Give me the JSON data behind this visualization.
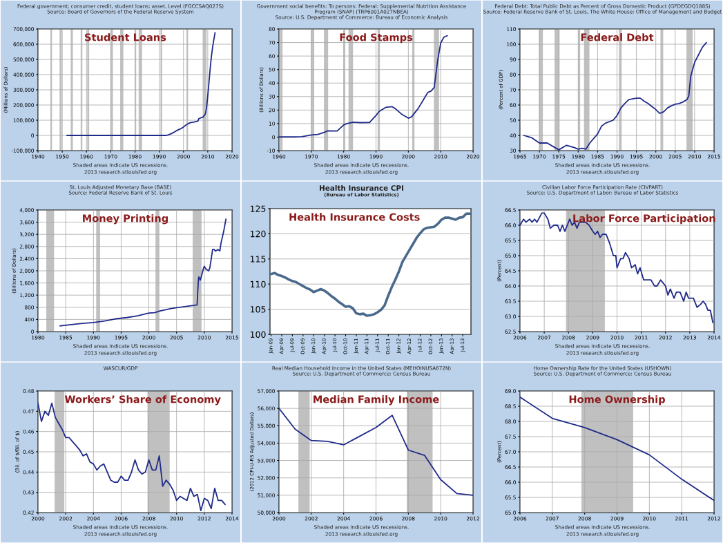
{
  "chart_data": [
    {
      "type": "line",
      "title": "Federal government; consumer credit, student loans; asset, Level (FGCCSAQ027S)",
      "subtitle": "Source: Board of Governors of the Federal Reserve System",
      "ylabel": "(Millions of Dollars)",
      "annotations": [
        "Student Loans",
        "Shaded areas indicate US recessions.",
        "2013 research.stlouisfed.org"
      ],
      "series": [
        {
          "color": "#1f2a8a",
          "x": [
            1952,
            1960,
            1970,
            1980,
            1993,
            1994,
            1995,
            1996,
            1997,
            1998,
            1999,
            2000,
            2001,
            2002,
            2003,
            2004,
            2005,
            2006,
            2006.3,
            2007,
            2008,
            2009,
            2009.5,
            2010,
            2010.5,
            2011,
            2011.5,
            2012,
            2012.5,
            2013
          ],
          "values": [
            0,
            0,
            0,
            0,
            0,
            5000,
            12000,
            20000,
            30000,
            38000,
            45000,
            55000,
            68000,
            78000,
            85000,
            87000,
            90000,
            95000,
            110000,
            115000,
            120000,
            140000,
            180000,
            260000,
            350000,
            440000,
            520000,
            580000,
            630000,
            675000
          ]
        }
      ],
      "bands": [
        {
          "axis": "x",
          "from": 1945.1,
          "to": 1945.8,
          "color": "#c0c0c0"
        },
        {
          "axis": "x",
          "from": 1948.9,
          "to": 1949.8,
          "color": "#c0c0c0"
        },
        {
          "axis": "x",
          "from": 1953.5,
          "to": 1954.4,
          "color": "#c0c0c0"
        },
        {
          "axis": "x",
          "from": 1957.6,
          "to": 1958.3,
          "color": "#c0c0c0"
        },
        {
          "axis": "x",
          "from": 1960.3,
          "to": 1961.1,
          "color": "#c0c0c0"
        },
        {
          "axis": "x",
          "from": 1969.9,
          "to": 1970.9,
          "color": "#c0c0c0"
        },
        {
          "axis": "x",
          "from": 1973.9,
          "to": 1975.2,
          "color": "#c0c0c0"
        },
        {
          "axis": "x",
          "from": 1980.0,
          "to": 1980.5,
          "color": "#c0c0c0"
        },
        {
          "axis": "x",
          "from": 1981.5,
          "to": 1982.9,
          "color": "#c0c0c0"
        },
        {
          "axis": "x",
          "from": 1990.5,
          "to": 1991.2,
          "color": "#c0c0c0"
        },
        {
          "axis": "x",
          "from": 2001.2,
          "to": 2001.9,
          "color": "#c0c0c0"
        },
        {
          "axis": "x",
          "from": 2007.9,
          "to": 2009.5,
          "color": "#c0c0c0"
        }
      ],
      "xlim": [
        1940,
        2020
      ],
      "xticks": [
        1940,
        1950,
        1960,
        1970,
        1980,
        1990,
        2000,
        2010,
        2020
      ],
      "ylim": [
        -100000,
        700000
      ],
      "yticks": [
        {
          "value": -100000,
          "label": "-100,000"
        },
        {
          "value": 0,
          "label": "0"
        },
        {
          "value": 100000,
          "label": "100,000"
        },
        {
          "value": 200000,
          "label": "200,000"
        },
        {
          "value": 300000,
          "label": "300,000"
        },
        {
          "value": 400000,
          "label": "400,000"
        },
        {
          "value": 500000,
          "label": "500,000"
        },
        {
          "value": 600000,
          "label": "600,000"
        },
        {
          "value": 700000,
          "label": "700,000"
        }
      ],
      "grid": true
    },
    {
      "type": "line",
      "title": "Government social benefits: To persons: Federal: Supplemental Nutrition Assistance\nProgram (SNAP) (TRP6001A027NBEA)",
      "subtitle": "Source: U.S. Department of Commerce: Bureau of Economic Analysis",
      "ylabel": "(Billions of Dollars)",
      "annotations": [
        "Food Stamps",
        "Shaded areas indicate US recessions.",
        "2013 research.stlouisfed.org"
      ],
      "series": [
        {
          "color": "#1f2a8a",
          "x": [
            1960,
            1965,
            1967,
            1970,
            1972,
            1974,
            1975,
            1978,
            1980,
            1981,
            1982,
            1983,
            1985,
            1988,
            1990,
            1991,
            1993,
            1995,
            1996,
            1998,
            2000,
            2001,
            2003,
            2005,
            2006,
            2007,
            2008,
            2009,
            2010,
            2011,
            2012
          ],
          "values": [
            0.1,
            0.1,
            0.3,
            1.6,
            2,
            3.5,
            4.6,
            4.5,
            9,
            10,
            10.5,
            11,
            10.7,
            10.8,
            16,
            19,
            22,
            22.5,
            21,
            16.8,
            14,
            15,
            21,
            29,
            33,
            34,
            36.7,
            55.7,
            69.6,
            74,
            75
          ]
        }
      ],
      "bands": [
        {
          "axis": "x",
          "from": 1960.3,
          "to": 1961.1,
          "color": "#c0c0c0"
        },
        {
          "axis": "x",
          "from": 1969.9,
          "to": 1970.9,
          "color": "#c0c0c0"
        },
        {
          "axis": "x",
          "from": 1973.9,
          "to": 1975.2,
          "color": "#c0c0c0"
        },
        {
          "axis": "x",
          "from": 1980.0,
          "to": 1980.5,
          "color": "#c0c0c0"
        },
        {
          "axis": "x",
          "from": 1981.5,
          "to": 1982.9,
          "color": "#c0c0c0"
        },
        {
          "axis": "x",
          "from": 1990.5,
          "to": 1991.2,
          "color": "#c0c0c0"
        },
        {
          "axis": "x",
          "from": 2001.2,
          "to": 2001.9,
          "color": "#c0c0c0"
        },
        {
          "axis": "x",
          "from": 2007.9,
          "to": 2009.5,
          "color": "#c0c0c0"
        }
      ],
      "xlim": [
        1960,
        2020
      ],
      "xticks": [
        1960,
        1970,
        1980,
        1990,
        2000,
        2010,
        2020
      ],
      "ylim": [
        -10,
        80
      ],
      "yticks": [
        -10,
        0,
        10,
        20,
        30,
        40,
        50,
        60,
        70,
        80
      ],
      "grid": true
    },
    {
      "type": "line",
      "title": "Federal Debt: Total Public Debt as Percent of Gross Domestic Product (GFDEGDQ188S)",
      "subtitle": "Source: Federal Reserve Bank of St. Louis, The White House: Office of Management and Budget",
      "ylabel": "(Percent of GDP)",
      "annotations": [
        "Federal Debt",
        "Shaded areas indicate US recessions.",
        "2013 research.stlouisfed.org"
      ],
      "series": [
        {
          "color": "#1f2a8a",
          "x": [
            1966,
            1968,
            1970,
            1972,
            1974,
            1975,
            1977,
            1979,
            1980,
            1981,
            1982,
            1983,
            1985,
            1986,
            1987,
            1989,
            1990,
            1991,
            1992,
            1993,
            1994,
            1995,
            1996,
            1997,
            1998,
            1999,
            2000,
            2001,
            2002,
            2003,
            2004,
            2005,
            2006,
            2007,
            2008,
            2008.5,
            2009,
            2010,
            2011,
            2012,
            2013
          ],
          "values": [
            40,
            38.5,
            35,
            35,
            32,
            30.5,
            33.5,
            32,
            31,
            31.5,
            31,
            35,
            41,
            46,
            48,
            50,
            53,
            58,
            61,
            63.5,
            64,
            64.5,
            64.5,
            62.5,
            61,
            59,
            57,
            54.5,
            55.5,
            58,
            59.5,
            60.5,
            61,
            62,
            63.5,
            66,
            79,
            88,
            93,
            98,
            101
          ]
        }
      ],
      "bands": [
        {
          "axis": "x",
          "from": 1969.9,
          "to": 1970.9,
          "color": "#c0c0c0"
        },
        {
          "axis": "x",
          "from": 1973.9,
          "to": 1975.2,
          "color": "#c0c0c0"
        },
        {
          "axis": "x",
          "from": 1980.0,
          "to": 1980.5,
          "color": "#c0c0c0"
        },
        {
          "axis": "x",
          "from": 1981.5,
          "to": 1982.9,
          "color": "#c0c0c0"
        },
        {
          "axis": "x",
          "from": 1990.5,
          "to": 1991.2,
          "color": "#c0c0c0"
        },
        {
          "axis": "x",
          "from": 2001.2,
          "to": 2001.9,
          "color": "#c0c0c0"
        },
        {
          "axis": "x",
          "from": 2007.9,
          "to": 2009.5,
          "color": "#c0c0c0"
        }
      ],
      "xlim": [
        1965,
        2015
      ],
      "xticks": [
        1965,
        1970,
        1975,
        1980,
        1985,
        1990,
        1995,
        2000,
        2005,
        2010,
        2015
      ],
      "ylim": [
        30,
        110
      ],
      "yticks": [
        30,
        40,
        50,
        60,
        70,
        80,
        90,
        100,
        110
      ],
      "grid": true
    },
    {
      "type": "line",
      "title": "St. Louis Adjusted Monetary Base (BASE)",
      "subtitle": "Source: Federal Reserve Bank of St. Louis",
      "ylabel": "(Billions of Dollars)",
      "annotations": [
        "Money Printing",
        "Shaded areas indicate US recessions.",
        "2013 research.stlouisfed.org"
      ],
      "series": [
        {
          "color": "#1f2a8a",
          "x": [
            1984,
            1986,
            1988,
            1990,
            1992,
            1994,
            1996,
            1998,
            2000,
            2001,
            2002,
            2004,
            2006,
            2008,
            2008.7,
            2008.9,
            2009,
            2009.3,
            2009.8,
            2010,
            2010.3,
            2010.8,
            2011,
            2011.5,
            2011.8,
            2012,
            2012.5,
            2012.8,
            2013,
            2013.5,
            2013.9
          ],
          "values": [
            190,
            230,
            270,
            300,
            350,
            420,
            460,
            520,
            610,
            620,
            680,
            760,
            810,
            860,
            880,
            1600,
            1800,
            1700,
            2050,
            2150,
            2050,
            2000,
            2100,
            2700,
            2700,
            2650,
            2700,
            2650,
            2900,
            3300,
            3700
          ]
        }
      ],
      "bands": [
        {
          "axis": "x",
          "from": 1981.5,
          "to": 1982.9,
          "color": "#c0c0c0"
        },
        {
          "axis": "x",
          "from": 1990.5,
          "to": 1991.2,
          "color": "#c0c0c0"
        },
        {
          "axis": "x",
          "from": 2001.2,
          "to": 2001.9,
          "color": "#c0c0c0"
        },
        {
          "axis": "x",
          "from": 2007.9,
          "to": 2009.5,
          "color": "#c0c0c0"
        }
      ],
      "xlim": [
        1980,
        2015
      ],
      "xticks": [
        1980,
        1985,
        1990,
        1995,
        2000,
        2005,
        2010,
        2015
      ],
      "ylim": [
        0,
        4000
      ],
      "yticks": [
        0,
        400,
        800,
        {
          "value": 1200,
          "label": "1,200"
        },
        {
          "value": 1600,
          "label": "1,600"
        },
        {
          "value": 2000,
          "label": "2,000"
        },
        {
          "value": 2400,
          "label": "2,400"
        },
        {
          "value": 2800,
          "label": "2,800"
        },
        {
          "value": 3200,
          "label": "3,200"
        },
        {
          "value": 3600,
          "label": "3,600"
        },
        {
          "value": 4000,
          "label": "4,000"
        }
      ],
      "grid": true
    },
    {
      "type": "line",
      "title": "Health Insurance CPI",
      "subtitle": "(Bureau of Labor Statistics)",
      "annotations": [
        "Health Insurance Costs"
      ],
      "categories": [
        "Jan-09",
        null,
        null,
        "Apr-09",
        null,
        null,
        "Jul-09",
        null,
        null,
        "Oct-09",
        null,
        null,
        "Jan-10",
        null,
        null,
        "Apr-10",
        null,
        null,
        "Jul-10",
        null,
        null,
        "Oct-10",
        null,
        null,
        "Jan-11",
        null,
        null,
        "Apr-11",
        null,
        null,
        "Jul-11",
        null,
        null,
        "Oct-11",
        null,
        null,
        "Jan-12",
        null,
        null,
        "Apr-12",
        null,
        null,
        "Jul-12",
        null,
        null,
        "Oct-12",
        null,
        null,
        "Jan-13",
        null,
        null,
        "Apr-13",
        null,
        null,
        "Jul-13",
        null,
        null
      ],
      "series": [
        {
          "color": "#4a6a8c",
          "values": [
            112.0,
            112.2,
            111.8,
            111.6,
            111.3,
            110.9,
            110.6,
            110.4,
            110.0,
            109.6,
            109.2,
            108.9,
            108.4,
            108.7,
            109.0,
            108.7,
            108.2,
            107.6,
            107.1,
            106.5,
            106.0,
            105.5,
            105.6,
            105.2,
            104.2,
            104.0,
            104.1,
            103.7,
            103.8,
            104.0,
            104.4,
            104.9,
            105.8,
            107.7,
            109.4,
            110.9,
            112.5,
            114.4,
            115.6,
            116.8,
            118.0,
            119.2,
            120.1,
            120.9,
            121.2,
            121.3,
            121.4,
            122.0,
            122.8,
            123.2,
            123.2,
            123.0,
            122.8,
            123.2,
            123.3,
            124.0,
            124.0
          ]
        }
      ],
      "ylim": [
        100,
        125
      ],
      "yticks": [
        100,
        105,
        110,
        115,
        120,
        125
      ],
      "grid": "y"
    },
    {
      "type": "line",
      "title": "Civilian Labor Force Participation Rate (CIVPART)",
      "subtitle": "Source: U.S. Department of Labor: Bureau of Labor Statistics",
      "ylabel": "(Percent)",
      "annotations": [
        "Labor Force Participation",
        "Shaded areas indicate US recessions.",
        "2013 research.stlouisfed.org"
      ],
      "series": [
        {
          "color": "#1f2a8a",
          "x": [
            2006.0,
            2006.15,
            2006.25,
            2006.4,
            2006.5,
            2006.6,
            2006.7,
            2006.9,
            2007.0,
            2007.15,
            2007.25,
            2007.4,
            2007.55,
            2007.65,
            2007.75,
            2007.85,
            2007.95,
            2008.05,
            2008.15,
            2008.25,
            2008.35,
            2008.45,
            2008.7,
            2008.85,
            2009.0,
            2009.1,
            2009.2,
            2009.3,
            2009.4,
            2009.55,
            2009.7,
            2009.85,
            2009.95,
            2010.0,
            2010.15,
            2010.25,
            2010.35,
            2010.5,
            2010.6,
            2010.75,
            2010.85,
            2010.95,
            2011.1,
            2011.4,
            2011.55,
            2011.65,
            2011.8,
            2011.9,
            2012.0,
            2012.1,
            2012.2,
            2012.35,
            2012.45,
            2012.6,
            2012.75,
            2012.85,
            2012.95,
            2013.15,
            2013.3,
            2013.45,
            2013.55,
            2013.65,
            2013.75,
            2013.85,
            2013.95
          ],
          "values": [
            66.0,
            66.2,
            66.1,
            66.2,
            66.1,
            66.2,
            66.1,
            66.4,
            66.4,
            66.2,
            65.9,
            66.0,
            66.0,
            65.8,
            66.0,
            65.8,
            66.0,
            66.2,
            66.0,
            66.1,
            65.9,
            66.1,
            66.1,
            66.0,
            65.8,
            65.7,
            65.8,
            65.6,
            65.7,
            65.7,
            65.4,
            65.0,
            65.0,
            64.6,
            64.9,
            64.9,
            65.1,
            64.9,
            64.6,
            64.7,
            64.4,
            64.6,
            64.2,
            64.2,
            64.0,
            64.0,
            64.2,
            64.1,
            64.0,
            63.7,
            63.9,
            63.6,
            63.8,
            63.8,
            63.5,
            63.8,
            63.6,
            63.6,
            63.3,
            63.4,
            63.5,
            63.4,
            63.2,
            63.2,
            62.8
          ]
        }
      ],
      "bands": [
        {
          "axis": "x",
          "from": 2007.9,
          "to": 2009.5,
          "color": "#c0c0c0"
        }
      ],
      "xlim": [
        2006,
        2014
      ],
      "xticks": [
        2006,
        2007,
        2008,
        2009,
        2010,
        2011,
        2012,
        2013,
        2014
      ],
      "ylim": [
        62.5,
        66.5
      ],
      "yticks": [
        62.5,
        {
          "value": 63,
          "label": "63.0"
        },
        63.5,
        {
          "value": 64,
          "label": "64.0"
        },
        64.5,
        {
          "value": 65,
          "label": "65.0"
        },
        65.5,
        {
          "value": 66,
          "label": "66.0"
        },
        66.5
      ],
      "grid": true
    },
    {
      "type": "line",
      "title": "WASCUR/GDP",
      "ylabel": "(Bil. of $/Bil. of $)",
      "annotations": [
        "Workers’ Share of Economy",
        "Shaded areas indicate US recessions.",
        "2013 research.stlouisfed.org"
      ],
      "series": [
        {
          "color": "#1f2a8a",
          "x": [
            2000.0,
            2000.25,
            2000.5,
            2000.75,
            2001.0,
            2001.25,
            2001.5,
            2001.75,
            2002.0,
            2002.25,
            2002.5,
            2002.75,
            2003.0,
            2003.25,
            2003.5,
            2003.75,
            2004.0,
            2004.25,
            2004.5,
            2004.75,
            2005.0,
            2005.25,
            2005.5,
            2005.75,
            2006.0,
            2006.25,
            2006.5,
            2006.75,
            2007.0,
            2007.25,
            2007.5,
            2007.75,
            2008.0,
            2008.25,
            2008.5,
            2008.75,
            2009.0,
            2009.25,
            2009.5,
            2009.75,
            2010.0,
            2010.25,
            2010.5,
            2010.75,
            2011.0,
            2011.25,
            2011.5,
            2011.75,
            2012.0,
            2012.25,
            2012.5,
            2012.75,
            2013.0,
            2013.25,
            2013.5
          ],
          "values": [
            0.474,
            0.465,
            0.47,
            0.468,
            0.474,
            0.467,
            0.464,
            0.461,
            0.457,
            0.457,
            0.455,
            0.453,
            0.451,
            0.448,
            0.449,
            0.445,
            0.444,
            0.441,
            0.443,
            0.444,
            0.44,
            0.436,
            0.435,
            0.435,
            0.438,
            0.436,
            0.436,
            0.44,
            0.446,
            0.441,
            0.439,
            0.44,
            0.446,
            0.441,
            0.441,
            0.448,
            0.433,
            0.436,
            0.434,
            0.431,
            0.426,
            0.428,
            0.427,
            0.426,
            0.432,
            0.428,
            0.429,
            0.421,
            0.427,
            0.426,
            0.422,
            0.432,
            0.426,
            0.426,
            0.424
          ]
        }
      ],
      "bands": [
        {
          "axis": "x",
          "from": 2001.2,
          "to": 2001.9,
          "color": "#c0c0c0"
        },
        {
          "axis": "x",
          "from": 2007.9,
          "to": 2009.5,
          "color": "#c0c0c0"
        }
      ],
      "xlim": [
        2000,
        2014
      ],
      "xticks": [
        2000,
        2002,
        2004,
        2006,
        2008,
        2010,
        2012,
        2014
      ],
      "ylim": [
        0.42,
        0.48
      ],
      "yticks": [
        0.42,
        0.43,
        0.44,
        0.45,
        0.46,
        0.47,
        0.48
      ],
      "grid": true
    },
    {
      "type": "line",
      "title": "Real Median Household Income in the United States (MEHOINUSA672N)",
      "subtitle": "Source: U.S. Department of Commerce: Census Bureau",
      "ylabel": "(2012 CPI-U-RS Adjusted Dollars)",
      "annotations": [
        "Median Family Income",
        "Shaded areas indicate US recessions.",
        "2013 research.stlouisfed.org"
      ],
      "series": [
        {
          "color": "#1f2a8a",
          "x": [
            2000,
            2001,
            2002,
            2003,
            2004,
            2005,
            2006,
            2007,
            2008,
            2009,
            2010,
            2011,
            2012
          ],
          "values": [
            56000,
            54800,
            54150,
            54100,
            53900,
            54400,
            54900,
            55600,
            53600,
            53300,
            51900,
            51100,
            51000
          ]
        }
      ],
      "bands": [
        {
          "axis": "x",
          "from": 2001.2,
          "to": 2001.9,
          "color": "#c0c0c0"
        },
        {
          "axis": "x",
          "from": 2007.9,
          "to": 2009.5,
          "color": "#c0c0c0"
        }
      ],
      "xlim": [
        2000,
        2012
      ],
      "xticks": [
        2000,
        2002,
        2004,
        2006,
        2008,
        2010,
        2012
      ],
      "ylim": [
        50000,
        57000
      ],
      "yticks": [
        {
          "value": 50000,
          "label": "50,000"
        },
        {
          "value": 51000,
          "label": "51,000"
        },
        {
          "value": 52000,
          "label": "52,000"
        },
        {
          "value": 53000,
          "label": "53,000"
        },
        {
          "value": 54000,
          "label": "54,000"
        },
        {
          "value": 55000,
          "label": "55,000"
        },
        {
          "value": 56000,
          "label": "56,000"
        },
        {
          "value": 57000,
          "label": "57,000"
        }
      ],
      "grid": true
    },
    {
      "type": "line",
      "title": "Home Ownership Rate for the United States (USHOWN)",
      "subtitle": "Source: U.S. Department of Commerce: Census Bureau",
      "ylabel": "(Percent)",
      "annotations": [
        "Home Ownership",
        "Shaded areas indicate US recessions.",
        "2013 research.stlouisfed.org"
      ],
      "series": [
        {
          "color": "#1f2a8a",
          "x": [
            2006,
            2007,
            2008,
            2009,
            2010,
            2011,
            2012
          ],
          "values": [
            68.8,
            68.1,
            67.8,
            67.4,
            66.9,
            66.1,
            65.4
          ]
        }
      ],
      "bands": [
        {
          "axis": "x",
          "from": 2007.9,
          "to": 2009.5,
          "color": "#c0c0c0"
        }
      ],
      "xlim": [
        2006,
        2012
      ],
      "xticks": [
        2006,
        2007,
        2008,
        2009,
        2010,
        2011,
        2012
      ],
      "ylim": [
        65,
        69
      ],
      "yticks": [
        {
          "value": 65,
          "label": "65.0"
        },
        65.5,
        {
          "value": 66,
          "label": "66.0"
        },
        66.5,
        {
          "value": 67,
          "label": "67.0"
        },
        67.5,
        {
          "value": 68,
          "label": "68.0"
        },
        68.5,
        {
          "value": 69,
          "label": "69.0"
        }
      ],
      "grid": true
    }
  ]
}
